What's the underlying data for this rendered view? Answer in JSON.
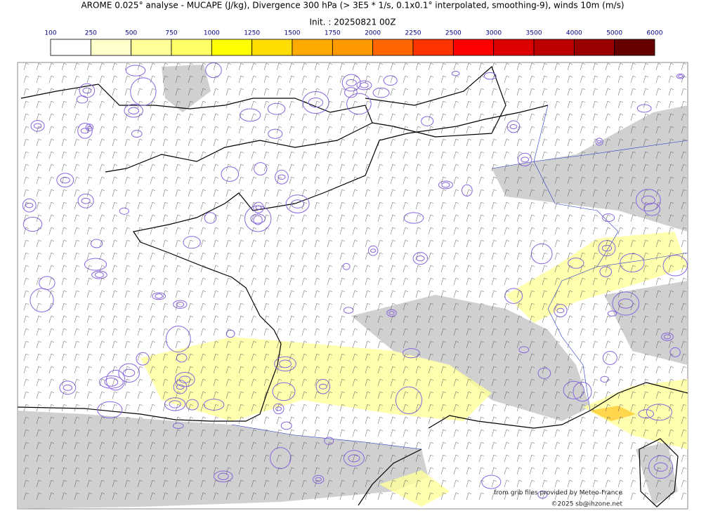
{
  "header": {
    "title": "AROME 0.025° analyse - MUCAPE (J/kg), Divergence 300 hPa (> 3E5 * 1/s, 0.1x0.1° interpolated, smoothing-9), winds 10m (m/s)",
    "init": "Init. : 20250821 00Z"
  },
  "colorbar": {
    "ticks": [
      100,
      250,
      500,
      750,
      1000,
      1250,
      1500,
      1750,
      2000,
      2250,
      2500,
      3000,
      3500,
      4000,
      5000,
      6000
    ],
    "colors": [
      "#ffffff",
      "#ffffcc",
      "#ffff99",
      "#ffff66",
      "#ffff00",
      "#ffdd00",
      "#ffaa00",
      "#ff9900",
      "#ff6600",
      "#ff3300",
      "#ff0000",
      "#dd0000",
      "#bb0000",
      "#990000",
      "#660000"
    ]
  },
  "credits": [
    "from grib files provided by Meteo-France",
    "©2025 sb@ihzone.net"
  ]
}
